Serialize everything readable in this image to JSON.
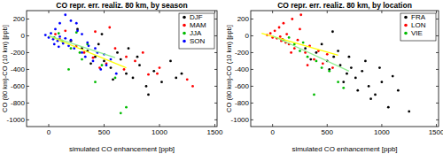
{
  "chart_data": [
    {
      "type": "scatter",
      "title": "CO repr. err. realiz. 80 km, by season",
      "x_label": "simulated CO enhancement [ppb]",
      "y_label": "CO (80 km)-CO (10 km) [ppb]",
      "xlim": [
        -200,
        1520
      ],
      "xticks": [
        0,
        500,
        1000,
        1500
      ],
      "ylim": [
        -1080,
        300
      ],
      "yticks": [
        200,
        0,
        -200,
        -400,
        -600,
        -800,
        -1000
      ],
      "legend": "upper right",
      "marker": "circle",
      "series": [
        {
          "name": "DJF",
          "color": "#000000",
          "x": [
            300,
            420,
            500,
            560,
            620,
            700,
            760,
            820,
            880,
            950,
            1020,
            1100,
            1150,
            200,
            350,
            450,
            650,
            900,
            1200,
            480,
            580,
            720,
            260,
            380,
            800
          ],
          "values": [
            -150,
            -250,
            -300,
            -380,
            -200,
            -450,
            -500,
            -350,
            -600,
            -420,
            -550,
            -300,
            -500,
            -60,
            -180,
            -100,
            -280,
            -700,
            -450,
            20,
            -520,
            -150,
            80,
            -330,
            -250
          ]
        },
        {
          "name": "MAM",
          "color": "#ff0000",
          "x": [
            100,
            250,
            400,
            520,
            600,
            680,
            780,
            900,
            1000,
            1250,
            1300,
            150,
            320,
            460,
            550,
            700,
            850,
            60,
            420,
            980
          ],
          "values": [
            -40,
            -120,
            -260,
            -330,
            -150,
            -400,
            -300,
            -460,
            -380,
            -520,
            -600,
            60,
            -200,
            -380,
            100,
            -250,
            -200,
            20,
            50,
            -450
          ]
        },
        {
          "name": "JJA",
          "color": "#00bb00",
          "x": [
            50,
            120,
            200,
            280,
            350,
            480,
            600,
            650,
            700,
            180,
            90,
            300,
            420,
            250
          ],
          "values": [
            -20,
            -60,
            -150,
            -200,
            -100,
            -350,
            -500,
            -920,
            -850,
            -400,
            30,
            -280,
            -550,
            40
          ]
        },
        {
          "name": "SON",
          "color": "#0000ff",
          "x": [
            -30,
            0,
            20,
            40,
            60,
            80,
            100,
            130,
            150,
            180,
            200,
            230,
            260,
            300,
            330,
            360,
            400,
            440,
            470,
            520,
            560,
            610,
            150,
            250,
            350,
            100,
            50,
            200,
            300,
            420,
            500,
            90
          ],
          "values": [
            10,
            -20,
            30,
            -40,
            80,
            -60,
            150,
            -90,
            -30,
            -120,
            180,
            -150,
            60,
            -200,
            -250,
            -120,
            -300,
            -200,
            -400,
            -350,
            -280,
            -450,
            250,
            150,
            -80,
            -10,
            -100,
            -50,
            20,
            -150,
            -220,
            -130
          ]
        },
        {
          "type": "line",
          "color": "#ffff00",
          "x": [
            0,
            700
          ],
          "values": [
            0,
            -380
          ]
        },
        {
          "type": "line",
          "color": "#90ee90",
          "x": [
            0,
            600
          ],
          "values": [
            0,
            -260
          ]
        }
      ]
    },
    {
      "type": "scatter",
      "title": "CO repr. err. realiz. 80 km, by location",
      "x_label": "simulated CO enhancement [ppb]",
      "y_label": "CO (80 km)-CO (10 km) [ppb]",
      "xlim": [
        -200,
        1520
      ],
      "xticks": [
        0,
        500,
        1000,
        1500
      ],
      "ylim": [
        -1080,
        300
      ],
      "yticks": [
        200,
        0,
        -200,
        -400,
        -600,
        -800,
        -1000
      ],
      "legend": "upper right",
      "marker": "circle",
      "series": [
        {
          "name": "FRA",
          "color": "#000000",
          "x": [
            300,
            400,
            500,
            560,
            620,
            680,
            720,
            760,
            820,
            880,
            940,
            1000,
            1060,
            1150,
            1250,
            450,
            600,
            700,
            850,
            900,
            1100,
            350,
            520,
            780,
            980,
            650,
            550
          ],
          "values": [
            -150,
            -200,
            -300,
            -250,
            -350,
            -450,
            -380,
            -500,
            -420,
            -600,
            -700,
            -550,
            -850,
            -650,
            -900,
            -100,
            -180,
            -250,
            -300,
            -750,
            -480,
            -280,
            -400,
            -650,
            -380,
            -550,
            50
          ]
        },
        {
          "name": "LON",
          "color": "#ff0000",
          "x": [
            -50,
            -20,
            0,
            20,
            40,
            60,
            80,
            100,
            120,
            150,
            180,
            200,
            230,
            260,
            300,
            340,
            380,
            420,
            460,
            500,
            550,
            70,
            130,
            250,
            320,
            90,
            170
          ],
          "values": [
            10,
            30,
            -20,
            60,
            -30,
            100,
            -60,
            150,
            -80,
            -100,
            200,
            -150,
            -50,
            250,
            -200,
            -120,
            -280,
            -180,
            -330,
            -220,
            -380,
            -10,
            20,
            80,
            -350,
            -40,
            -200
          ]
        },
        {
          "name": "VIE",
          "color": "#00bb00",
          "x": [
            100,
            200,
            250,
            320,
            400,
            450,
            520,
            600,
            650,
            380,
            280,
            150
          ],
          "values": [
            -50,
            -100,
            -180,
            -250,
            -300,
            -380,
            -420,
            -550,
            -620,
            -700,
            -80,
            -20
          ]
        },
        {
          "type": "line",
          "color": "#ffff00",
          "x": [
            -100,
            600
          ],
          "values": [
            30,
            -230
          ]
        },
        {
          "type": "line",
          "color": "#90ee90",
          "x": [
            0,
            700
          ],
          "values": [
            0,
            -420
          ]
        }
      ]
    }
  ]
}
